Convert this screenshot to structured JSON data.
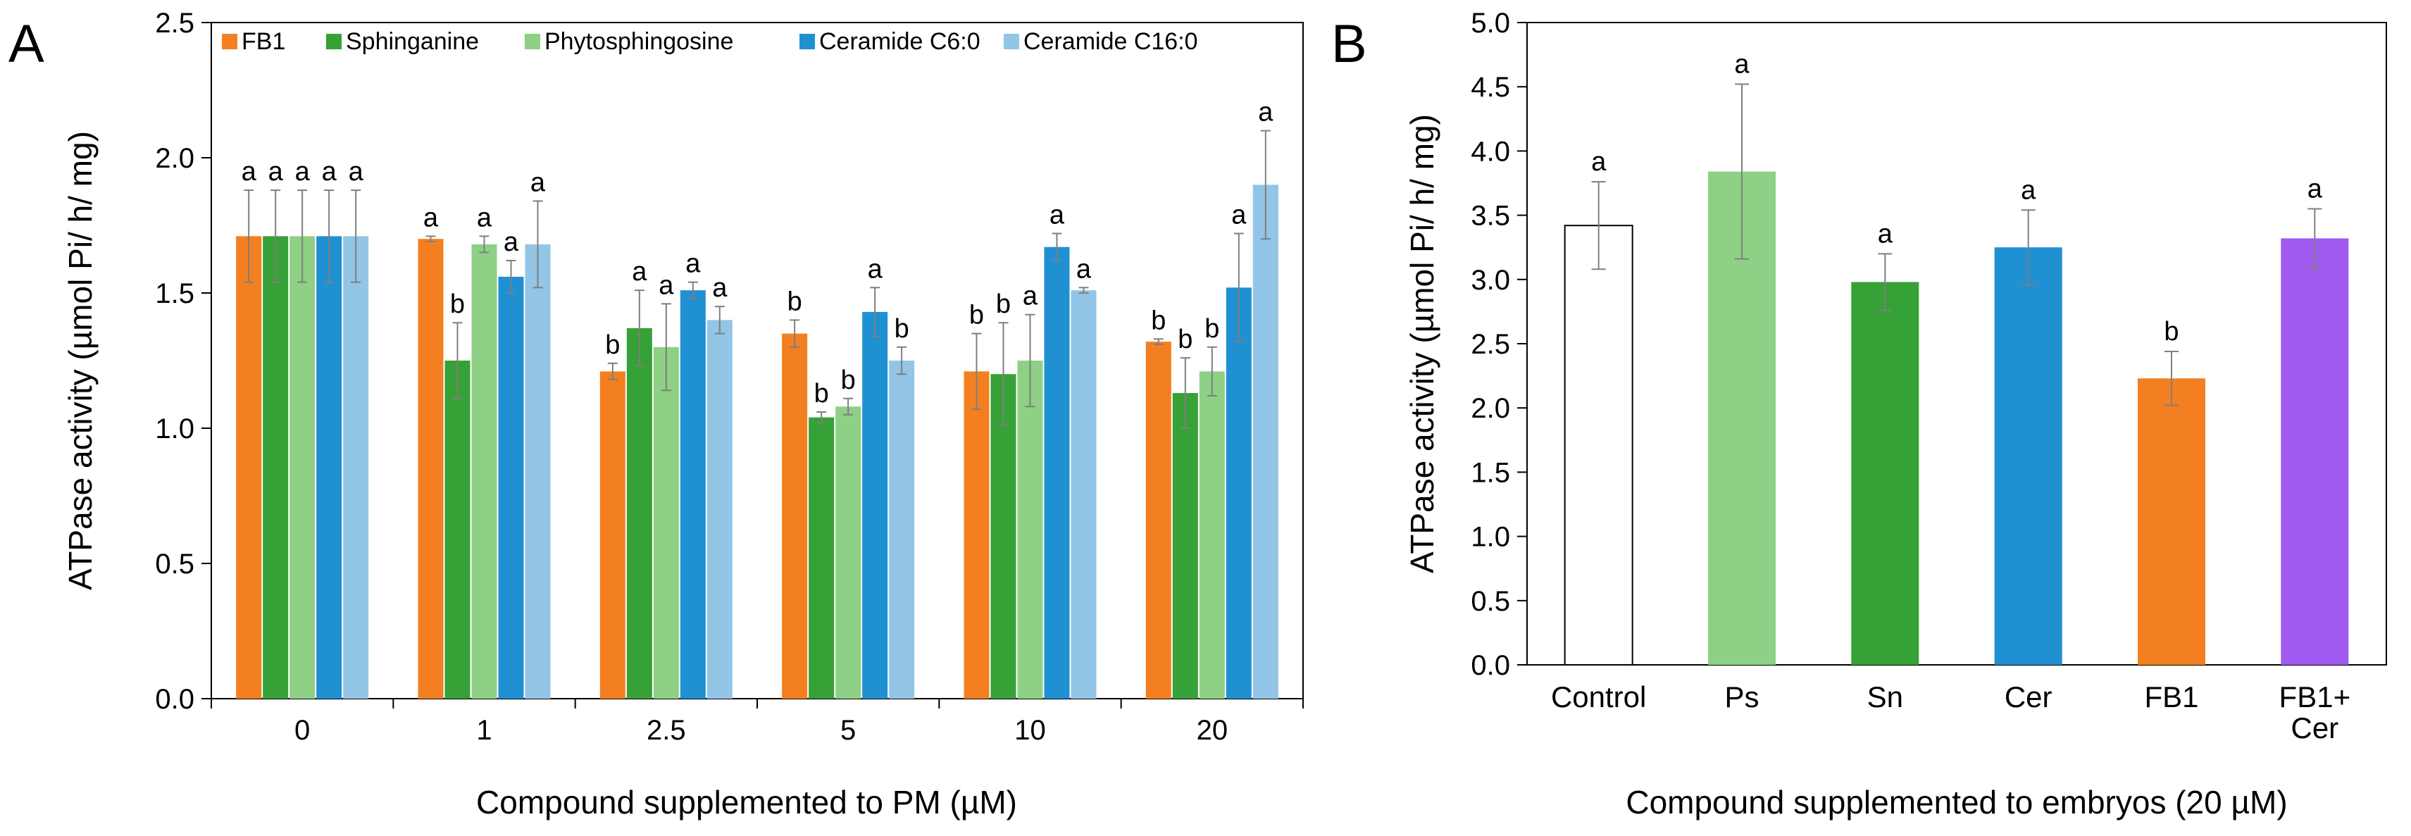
{
  "chart_data": [
    {
      "panel": "A",
      "type": "bar",
      "title": "",
      "xlabel": "Compound supplemented to PM (µM)",
      "ylabel": "ATPase activity (µmol Pi/ h/ mg)",
      "ylim": [
        0,
        2.5
      ],
      "yticks": [
        "0.0",
        "0.5",
        "1.0",
        "1.5",
        "2.0",
        "2.5"
      ],
      "grid": false,
      "legend_position": "top",
      "categories": [
        "0",
        "1",
        "2.5",
        "5",
        "10",
        "20"
      ],
      "series": [
        {
          "name": "FB1",
          "color": "#f47f20",
          "values": [
            1.71,
            1.7,
            1.21,
            1.35,
            1.21,
            1.32
          ],
          "errors": [
            0.17,
            0.01,
            0.03,
            0.05,
            0.14,
            0.01
          ],
          "letters": [
            "a",
            "a",
            "b",
            "b",
            "b",
            "b"
          ]
        },
        {
          "name": "Sphinganine",
          "color": "#36a136",
          "values": [
            1.71,
            1.25,
            1.37,
            1.04,
            1.2,
            1.13
          ],
          "errors": [
            0.17,
            0.14,
            0.14,
            0.02,
            0.19,
            0.13
          ],
          "letters": [
            "a",
            "b",
            "a",
            "b",
            "b",
            "b"
          ]
        },
        {
          "name": "Phytosphingosine",
          "color": "#8ed085",
          "values": [
            1.71,
            1.68,
            1.3,
            1.08,
            1.25,
            1.21
          ],
          "errors": [
            0.17,
            0.03,
            0.16,
            0.03,
            0.17,
            0.09
          ],
          "letters": [
            "a",
            "a",
            "a",
            "b",
            "a",
            "b"
          ]
        },
        {
          "name": "Ceramide C6:0",
          "color": "#1f91d3",
          "values": [
            1.71,
            1.56,
            1.51,
            1.43,
            1.67,
            1.52
          ],
          "errors": [
            0.17,
            0.06,
            0.03,
            0.09,
            0.05,
            0.2
          ],
          "letters": [
            "a",
            "a",
            "a",
            "a",
            "a",
            "a"
          ]
        },
        {
          "name": "Ceramide C16:0",
          "color": "#92c5e6",
          "values": [
            1.71,
            1.68,
            1.4,
            1.25,
            1.51,
            1.9
          ],
          "errors": [
            0.17,
            0.16,
            0.05,
            0.05,
            0.01,
            0.2
          ],
          "letters": [
            "a",
            "a",
            "a",
            "b",
            "a",
            "a"
          ]
        }
      ]
    },
    {
      "panel": "B",
      "type": "bar",
      "title": "",
      "xlabel": "Compound supplemented to embryos (20 µM)",
      "ylabel": "ATPase activity (µmol Pi/ h/ mg)",
      "ylim": [
        0,
        5.0
      ],
      "yticks": [
        "0.0",
        "0.5",
        "1.0",
        "1.5",
        "2.0",
        "2.5",
        "3.0",
        "3.5",
        "4.0",
        "4.5",
        "5.0"
      ],
      "grid": false,
      "categories": [
        [
          "Control"
        ],
        [
          "Ps"
        ],
        [
          "Sn"
        ],
        [
          "Cer"
        ],
        [
          "FB1"
        ],
        [
          "FB1+",
          "Cer"
        ]
      ],
      "values": [
        3.42,
        3.84,
        2.98,
        3.25,
        2.23,
        3.32
      ],
      "errors": [
        0.34,
        0.68,
        0.22,
        0.29,
        0.21,
        0.23
      ],
      "letters": [
        "a",
        "a",
        "a",
        "a",
        "b",
        "a"
      ],
      "colors": [
        "#ffffff",
        "#8ed085",
        "#36a136",
        "#1f91d3",
        "#f47f20",
        "#a05af0"
      ]
    }
  ]
}
